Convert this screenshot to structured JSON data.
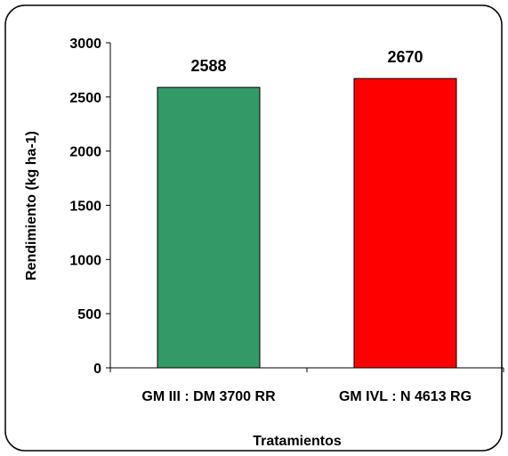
{
  "chart_data": {
    "type": "bar",
    "title": "",
    "xlabel": "Tratamientos",
    "ylabel": "Rendimiento (kg ha-1)",
    "categories": [
      "GM III : DM 3700 RR",
      "GM IVL : N 4613 RG"
    ],
    "values": [
      2588,
      2670
    ],
    "value_labels": [
      "2588",
      "2670"
    ],
    "bar_colors": [
      "#339966",
      "#ff0000"
    ],
    "ylim": [
      0,
      3000
    ],
    "yticks": [
      0,
      500,
      1000,
      1500,
      2000,
      2500,
      3000
    ],
    "ytick_labels": [
      "0",
      "500",
      "1000",
      "1500",
      "2000",
      "2500",
      "3000"
    ],
    "grid": false,
    "legend": "none"
  }
}
